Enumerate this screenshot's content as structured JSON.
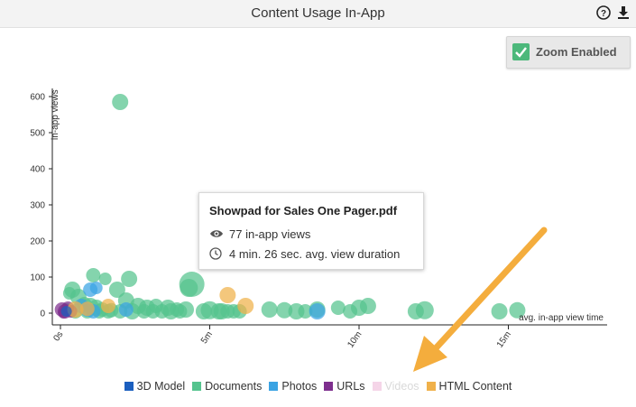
{
  "window": {
    "title": "Content Usage In-App",
    "help_icon": "help-circle-icon",
    "download_icon": "download-icon"
  },
  "zoom_toggle": {
    "label": "Zoom Enabled",
    "checked": true,
    "color": "#4cb87b"
  },
  "tooltip": {
    "title": "Showpad for Sales One Pager.pdf",
    "views": "77 in-app views",
    "duration": "4 min. 26 sec. avg. view duration",
    "views_icon": "eye-icon",
    "duration_icon": "clock-icon"
  },
  "legend": [
    {
      "label": "3D Model",
      "color": "#1b5fbf",
      "active": true
    },
    {
      "label": "Documents",
      "color": "#55c48e",
      "active": true
    },
    {
      "label": "Photos",
      "color": "#3aa3e3",
      "active": true
    },
    {
      "label": "URLs",
      "color": "#7e2f8e",
      "active": true
    },
    {
      "label": "Videos",
      "color": "#f5d5e8",
      "active": false
    },
    {
      "label": "HTML Content",
      "color": "#f0b14a",
      "active": true
    }
  ],
  "chart_data": {
    "type": "scatter",
    "xlabel": "avg. in-app view time",
    "ylabel": "in-app views",
    "x_unit": "minutes",
    "xlim": [
      0,
      18
    ],
    "ylim": [
      0,
      650
    ],
    "xticks": [
      {
        "v": 0,
        "label": "0s"
      },
      {
        "v": 5,
        "label": "5m"
      },
      {
        "v": 10,
        "label": "10m"
      },
      {
        "v": 15,
        "label": "15m"
      }
    ],
    "yticks": [
      0,
      100,
      200,
      300,
      400,
      500,
      600
    ],
    "series": [
      {
        "name": "Documents",
        "color": "#55c48e",
        "points": [
          [
            2.0,
            585,
            9
          ],
          [
            1.1,
            105,
            8
          ],
          [
            1.5,
            95,
            7
          ],
          [
            2.3,
            95,
            9
          ],
          [
            1.9,
            65,
            9
          ],
          [
            4.4,
            80,
            14
          ],
          [
            4.3,
            70,
            10
          ],
          [
            0.3,
            55,
            7
          ],
          [
            0.4,
            65,
            9
          ],
          [
            0.6,
            45,
            9
          ],
          [
            0.8,
            25,
            8
          ],
          [
            1.0,
            20,
            9
          ],
          [
            1.2,
            15,
            9
          ],
          [
            1.4,
            10,
            8
          ],
          [
            1.7,
            8,
            8
          ],
          [
            2.2,
            35,
            9
          ],
          [
            2.6,
            20,
            9
          ],
          [
            2.9,
            15,
            9
          ],
          [
            3.2,
            20,
            8
          ],
          [
            3.6,
            15,
            9
          ],
          [
            3.9,
            10,
            8
          ],
          [
            4.2,
            10,
            9
          ],
          [
            0.2,
            10,
            7
          ],
          [
            0.5,
            5,
            8
          ],
          [
            0.9,
            5,
            8
          ],
          [
            1.3,
            5,
            8
          ],
          [
            1.6,
            5,
            8
          ],
          [
            2.0,
            5,
            8
          ],
          [
            2.4,
            5,
            9
          ],
          [
            2.8,
            5,
            8
          ],
          [
            3.1,
            5,
            8
          ],
          [
            3.4,
            5,
            8
          ],
          [
            3.7,
            5,
            9
          ],
          [
            4.0,
            5,
            8
          ],
          [
            5.0,
            8,
            10
          ],
          [
            5.4,
            5,
            9
          ],
          [
            5.8,
            5,
            8
          ],
          [
            6.0,
            5,
            8
          ],
          [
            7.0,
            10,
            9
          ],
          [
            7.5,
            8,
            9
          ],
          [
            7.9,
            5,
            9
          ],
          [
            8.2,
            5,
            8
          ],
          [
            8.6,
            10,
            9
          ],
          [
            9.3,
            15,
            8
          ],
          [
            9.7,
            5,
            8
          ],
          [
            10.0,
            15,
            9
          ],
          [
            10.3,
            20,
            9
          ],
          [
            11.9,
            5,
            9
          ],
          [
            12.2,
            8,
            10
          ],
          [
            14.7,
            5,
            9
          ],
          [
            15.3,
            8,
            9
          ],
          [
            5.3,
            5,
            9
          ],
          [
            5.6,
            5,
            8
          ],
          [
            4.8,
            5,
            9
          ]
        ]
      },
      {
        "name": "Photos",
        "color": "#3aa3e3",
        "points": [
          [
            1.0,
            65,
            8
          ],
          [
            1.2,
            70,
            7
          ],
          [
            0.7,
            20,
            8
          ],
          [
            0.9,
            10,
            8
          ],
          [
            1.1,
            5,
            8
          ],
          [
            2.2,
            10,
            8
          ],
          [
            8.6,
            5,
            9
          ]
        ]
      },
      {
        "name": "URLs",
        "color": "#7e2f8e",
        "points": [
          [
            0.05,
            10,
            8
          ],
          [
            0.15,
            5,
            8
          ],
          [
            0.25,
            15,
            7
          ],
          [
            0.35,
            5,
            7
          ],
          [
            0.1,
            0,
            6
          ]
        ]
      },
      {
        "name": "HTML Content",
        "color": "#f0b14a",
        "points": [
          [
            5.6,
            50,
            9
          ],
          [
            6.2,
            20,
            9
          ],
          [
            0.5,
            10,
            9
          ],
          [
            0.9,
            12,
            8
          ],
          [
            1.6,
            20,
            8
          ]
        ]
      },
      {
        "name": "3D Model",
        "color": "#1b5fbf",
        "points": [
          [
            0.2,
            5,
            6
          ]
        ]
      }
    ]
  }
}
